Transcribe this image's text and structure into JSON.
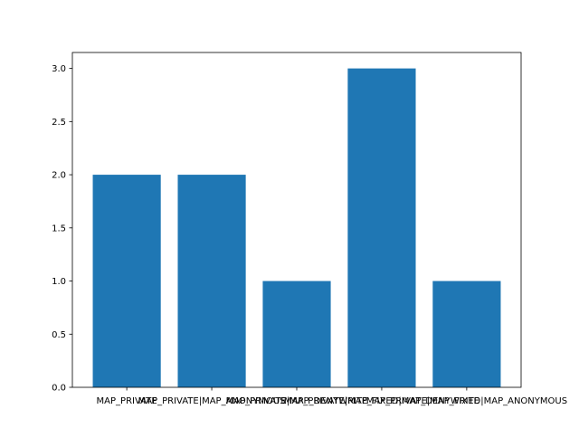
{
  "chart_data": {
    "type": "bar",
    "title": "",
    "xlabel": "",
    "ylabel": "",
    "categories": [
      "MAP_PRIVATE",
      "MAP_PRIVATE|MAP_ANONYMOUS",
      "MAP_PRIVATE|MAP_DENYWRITE",
      "MAP_PRIVATE|MAP_FIXED|MAP_DENYWRITE",
      "MAP_PRIVATE|MAP_FIXED|MAP_ANONYMOUS"
    ],
    "values": [
      2,
      2,
      1,
      3,
      1
    ],
    "ylim": [
      0,
      3.15
    ],
    "yticks": [
      "0.0",
      "0.5",
      "1.0",
      "1.5",
      "2.0",
      "2.5",
      "3.0"
    ],
    "grid": false,
    "colors": {
      "bar": "#1f77b4",
      "axis": "#000000",
      "background": "#ffffff"
    }
  }
}
